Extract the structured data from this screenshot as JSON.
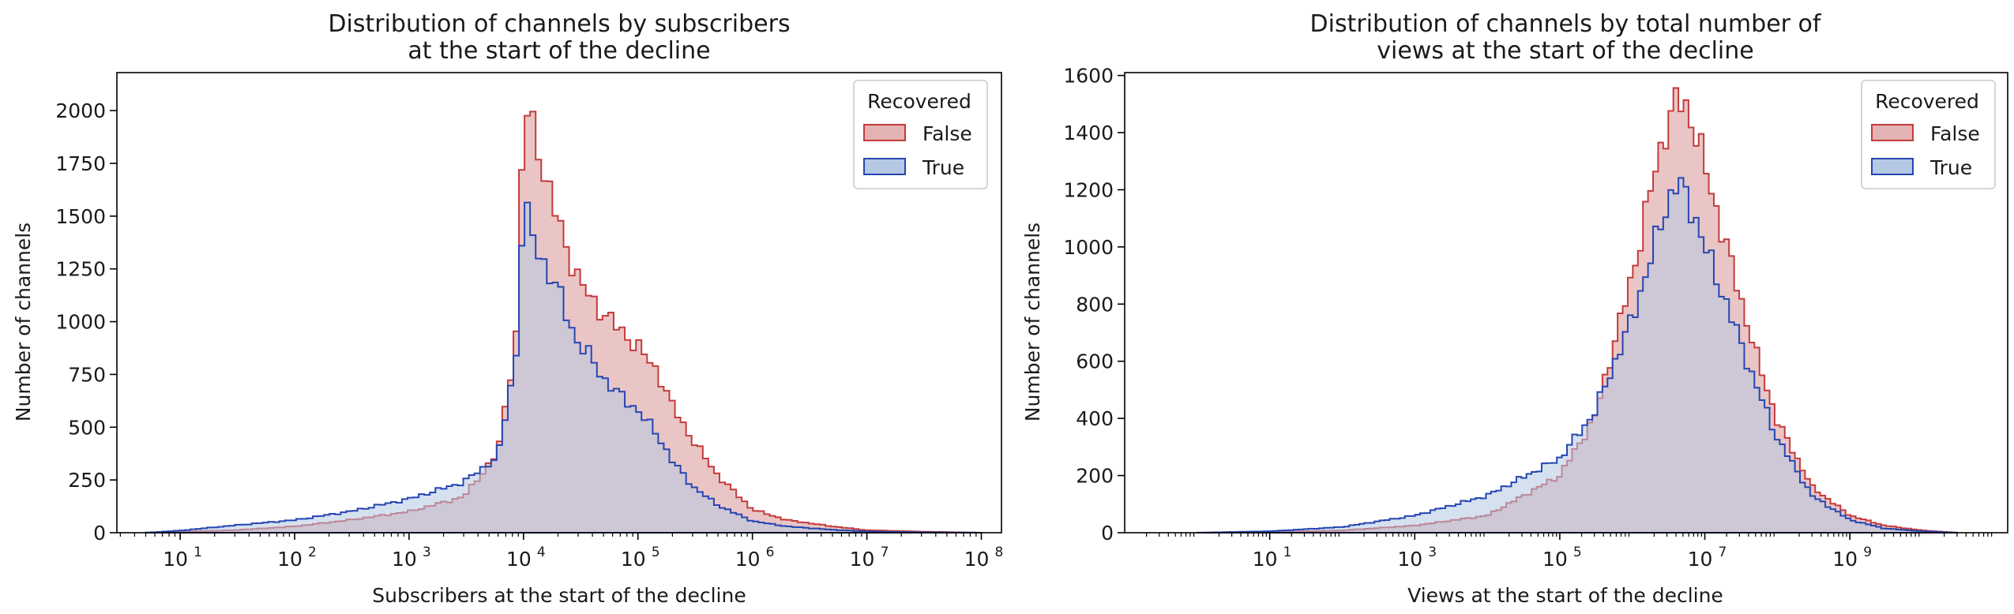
{
  "chart_data": [
    {
      "type": "histogram-step",
      "title": [
        "Distribution of channels by subscribers",
        "at the start of the decline"
      ],
      "xlabel": "Subscribers at the start of the decline",
      "ylabel": "Number of channels",
      "xscale": "log",
      "xlim": [
        2.8,
        150000000.0
      ],
      "ylim": [
        0,
        2180
      ],
      "yticks": [
        0,
        250,
        500,
        750,
        1000,
        1250,
        1500,
        1750,
        2000
      ],
      "xticks": [
        {
          "base": "10",
          "exp": "1"
        },
        {
          "base": "10",
          "exp": "2"
        },
        {
          "base": "10",
          "exp": "3"
        },
        {
          "base": "10",
          "exp": "4"
        },
        {
          "base": "10",
          "exp": "5"
        },
        {
          "base": "10",
          "exp": "6"
        },
        {
          "base": "10",
          "exp": "7"
        },
        {
          "base": "10",
          "exp": "8"
        }
      ],
      "legend": {
        "title": "Recovered",
        "placement": "top-right"
      },
      "series": [
        {
          "name": "False",
          "stroke": "#c43b3b",
          "fill": "#e3b2b2",
          "x": [
            5,
            10,
            30,
            100,
            300,
            1000,
            3000,
            6000,
            9000,
            10000,
            11000,
            13000,
            15000,
            20000,
            25000,
            30000,
            40000,
            50000,
            70000,
            100000,
            150000,
            200000,
            300000,
            500000,
            1000000,
            2000000,
            5000000,
            10000000,
            30000000,
            100000000
          ],
          "y": [
            0,
            5,
            12,
            30,
            60,
            100,
            170,
            380,
            1000,
            2070,
            1960,
            1900,
            1700,
            1480,
            1320,
            1200,
            1100,
            1040,
            960,
            880,
            760,
            600,
            440,
            270,
            110,
            60,
            30,
            12,
            5,
            0
          ]
        },
        {
          "name": "True",
          "stroke": "#2546b2",
          "fill": "#b5c8e4",
          "x": [
            5,
            10,
            30,
            100,
            300,
            1000,
            3000,
            6000,
            9000,
            10000,
            11000,
            13000,
            15000,
            20000,
            25000,
            30000,
            40000,
            50000,
            70000,
            100000,
            150000,
            200000,
            300000,
            500000,
            1000000,
            2000000,
            5000000,
            10000000,
            30000000,
            100000000
          ],
          "y": [
            0,
            10,
            35,
            60,
            100,
            160,
            240,
            360,
            900,
            1680,
            1450,
            1350,
            1280,
            1150,
            1000,
            900,
            820,
            730,
            650,
            580,
            460,
            340,
            220,
            130,
            55,
            30,
            14,
            6,
            2,
            0
          ]
        }
      ]
    },
    {
      "type": "histogram-step",
      "title": [
        "Distribution of channels by total number of",
        "views at the start of the decline"
      ],
      "xlabel": "Views at the start of the decline",
      "ylabel": "Number of channels",
      "xscale": "log",
      "xlim": [
        0.1,
        150000000000.0
      ],
      "ylim": [
        0,
        1610
      ],
      "yticks": [
        0,
        200,
        400,
        600,
        800,
        1000,
        1200,
        1400,
        1600
      ],
      "xticks": [
        {
          "base": "10",
          "exp": "1"
        },
        {
          "base": "10",
          "exp": "3"
        },
        {
          "base": "10",
          "exp": "5"
        },
        {
          "base": "10",
          "exp": "7"
        },
        {
          "base": "10",
          "exp": "9"
        }
      ],
      "legend": {
        "title": "Recovered",
        "placement": "top-right"
      },
      "series": [
        {
          "name": "False",
          "stroke": "#c43b3b",
          "fill": "#e3b2b2",
          "x": [
            1,
            10,
            100,
            1000,
            10000,
            100000,
            300000,
            1000000,
            2000000,
            3000000,
            4000000,
            5000000,
            7000000,
            10000000,
            20000000,
            50000000,
            100000000,
            300000000,
            1000000000,
            3000000000,
            10000000000,
            30000000000
          ],
          "y": [
            0,
            2,
            8,
            25,
            60,
            200,
            400,
            900,
            1250,
            1430,
            1500,
            1510,
            1430,
            1280,
            1000,
            630,
            390,
            160,
            60,
            25,
            8,
            0
          ]
        },
        {
          "name": "True",
          "stroke": "#2546b2",
          "fill": "#b5c8e4",
          "x": [
            1,
            10,
            100,
            1000,
            10000,
            100000,
            300000,
            1000000,
            2000000,
            3000000,
            4000000,
            5000000,
            7000000,
            10000000,
            20000000,
            50000000,
            100000000,
            300000000,
            1000000000,
            3000000000,
            10000000000,
            30000000000
          ],
          "y": [
            0,
            5,
            20,
            60,
            130,
            260,
            420,
            750,
            1000,
            1150,
            1220,
            1200,
            1120,
            1000,
            800,
            520,
            330,
            130,
            45,
            15,
            5,
            0
          ]
        }
      ]
    }
  ]
}
